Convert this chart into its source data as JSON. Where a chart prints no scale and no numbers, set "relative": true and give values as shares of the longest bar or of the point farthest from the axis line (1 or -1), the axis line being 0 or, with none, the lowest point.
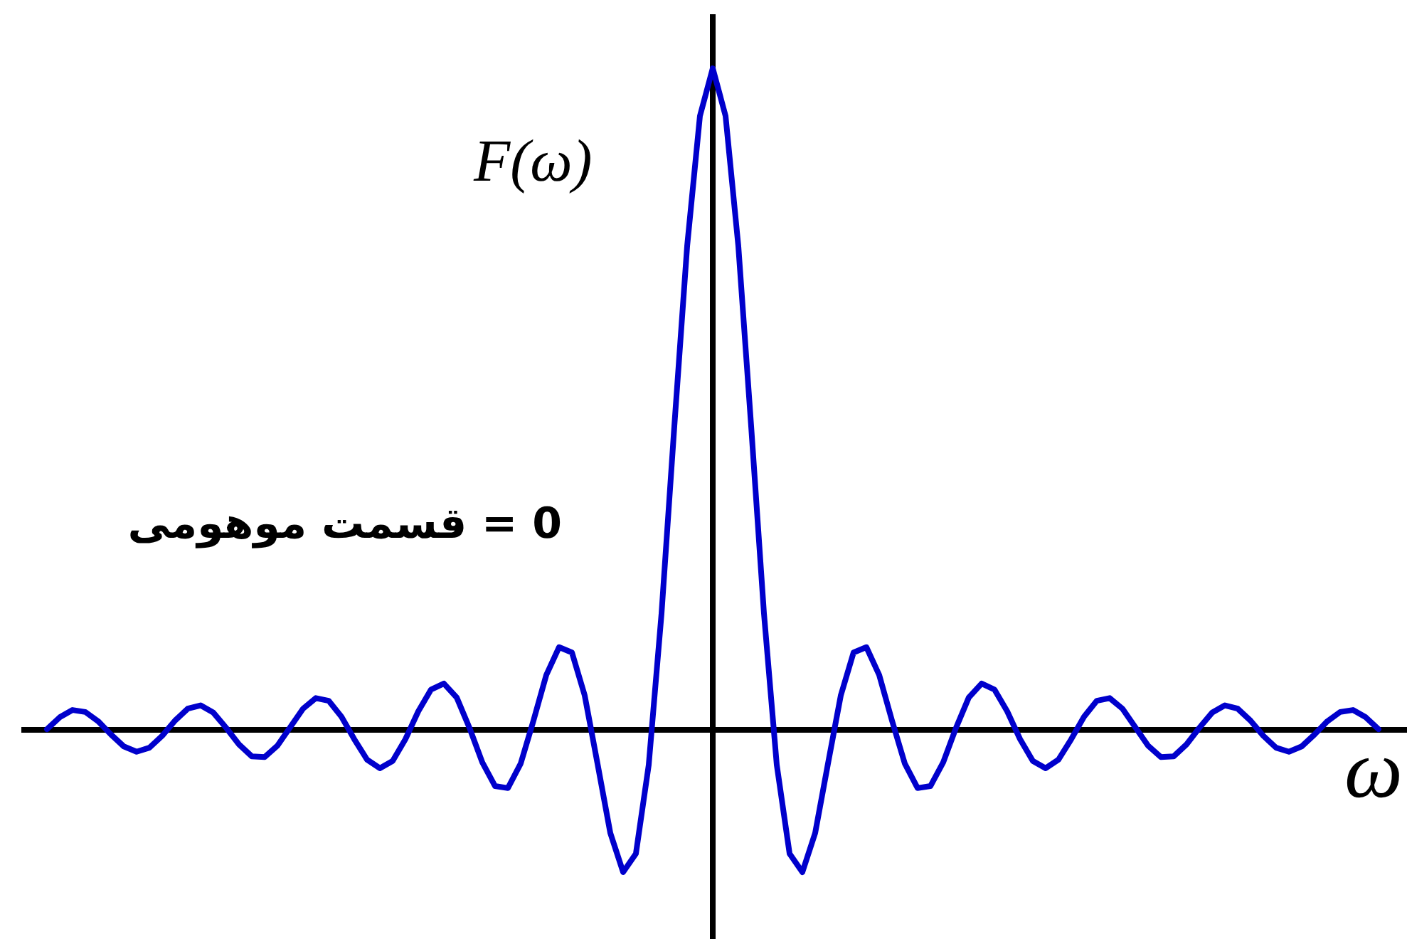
{
  "chart_data": {
    "type": "line",
    "relative": true,
    "categories": [
      null,
      null,
      null,
      null,
      null,
      null,
      null,
      null,
      null,
      null,
      null,
      null,
      null,
      null,
      null,
      null,
      null,
      null,
      null,
      null,
      null,
      null,
      null,
      null,
      null,
      null,
      null,
      null,
      null,
      null,
      null,
      null,
      null,
      null,
      null,
      null,
      null,
      null,
      null,
      null,
      null,
      null,
      null,
      null,
      null,
      null,
      null,
      null,
      null,
      null,
      null,
      null,
      null,
      null,
      null,
      null,
      null,
      null,
      null,
      null,
      null,
      null,
      null,
      null,
      null,
      null,
      null,
      null,
      null,
      null,
      null,
      null,
      null,
      null,
      null,
      null,
      null,
      null,
      null,
      null,
      null,
      null,
      null,
      null,
      null,
      null,
      null,
      null,
      null,
      null,
      null,
      null,
      null,
      null,
      null,
      null,
      null,
      null,
      null,
      null,
      null,
      null,
      null,
      null,
      null
    ],
    "series": [
      {
        "color": "#0000cc",
        "values": [
          0.001,
          0.019,
          0.03,
          0.027,
          0.013,
          -0.007,
          -0.025,
          -0.033,
          -0.027,
          -0.009,
          0.014,
          0.032,
          0.037,
          0.026,
          0.003,
          -0.022,
          -0.04,
          -0.041,
          -0.024,
          0.004,
          0.032,
          0.048,
          0.044,
          0.02,
          -0.014,
          -0.045,
          -0.058,
          -0.047,
          -0.014,
          0.028,
          0.061,
          0.07,
          0.049,
          0.003,
          -0.049,
          -0.085,
          -0.088,
          -0.051,
          0.014,
          0.083,
          0.125,
          0.117,
          0.052,
          -0.051,
          -0.156,
          -0.215,
          -0.187,
          -0.053,
          0.176,
          0.459,
          0.731,
          0.928,
          1,
          0.928,
          0.731,
          0.459,
          0.176,
          -0.053,
          -0.187,
          -0.215,
          -0.156,
          -0.051,
          0.052,
          0.117,
          0.125,
          0.083,
          0.014,
          -0.051,
          -0.088,
          -0.085,
          -0.049,
          0.003,
          0.049,
          0.07,
          0.061,
          0.028,
          -0.014,
          -0.047,
          -0.058,
          -0.045,
          -0.014,
          0.02,
          0.044,
          0.048,
          0.032,
          0.004,
          -0.024,
          -0.041,
          -0.04,
          -0.022,
          0.003,
          0.026,
          0.037,
          0.032,
          0.014,
          -0.009,
          -0.027,
          -0.033,
          -0.025,
          -0.007,
          0.013,
          0.027,
          0.03,
          0.019,
          0.001
        ]
      }
    ],
    "xlabel": "ω",
    "ylabel": "F(ω)",
    "annotations": [
      "0 = قسمت موهومی"
    ]
  }
}
